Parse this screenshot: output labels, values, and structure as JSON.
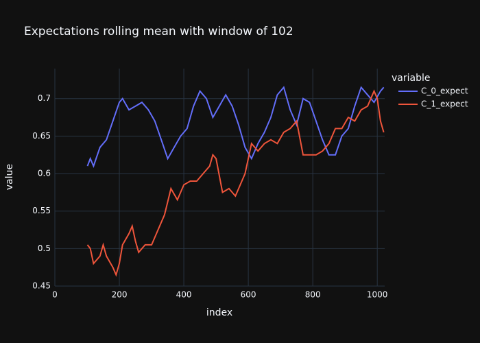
{
  "chart_data": {
    "type": "line",
    "title": "Expectations rolling mean with window of 102",
    "xlabel": "index",
    "ylabel": "value",
    "legend_title": "variable",
    "xlim": [
      0,
      1023
    ],
    "ylim": [
      0.45,
      0.74
    ],
    "xticks": [
      0,
      200,
      400,
      600,
      800,
      1000
    ],
    "yticks": [
      0.45,
      0.5,
      0.55,
      0.6,
      0.65,
      0.7
    ],
    "grid": true,
    "series": [
      {
        "name": "C_0_expect",
        "color": "#636efa",
        "x": [
          101,
          110,
          120,
          140,
          160,
          180,
          200,
          210,
          230,
          250,
          270,
          290,
          310,
          330,
          350,
          370,
          390,
          410,
          430,
          450,
          470,
          490,
          510,
          530,
          550,
          570,
          590,
          610,
          630,
          650,
          670,
          690,
          710,
          730,
          750,
          770,
          790,
          810,
          830,
          850,
          870,
          890,
          910,
          930,
          950,
          970,
          990,
          1010,
          1020
        ],
        "values": [
          0.61,
          0.62,
          0.61,
          0.635,
          0.645,
          0.67,
          0.695,
          0.7,
          0.685,
          0.69,
          0.695,
          0.685,
          0.67,
          0.645,
          0.62,
          0.635,
          0.65,
          0.66,
          0.69,
          0.71,
          0.7,
          0.675,
          0.69,
          0.705,
          0.69,
          0.665,
          0.635,
          0.62,
          0.64,
          0.655,
          0.675,
          0.705,
          0.715,
          0.685,
          0.665,
          0.7,
          0.695,
          0.67,
          0.645,
          0.625,
          0.625,
          0.65,
          0.66,
          0.69,
          0.715,
          0.705,
          0.695,
          0.71,
          0.715
        ]
      },
      {
        "name": "C_1_expect",
        "color": "#ef553b",
        "x": [
          101,
          110,
          120,
          140,
          150,
          160,
          180,
          190,
          200,
          210,
          230,
          240,
          250,
          260,
          280,
          300,
          320,
          340,
          360,
          380,
          400,
          420,
          440,
          460,
          480,
          490,
          500,
          520,
          540,
          560,
          580,
          590,
          610,
          630,
          650,
          670,
          690,
          710,
          730,
          750,
          770,
          790,
          810,
          830,
          850,
          870,
          890,
          910,
          930,
          950,
          970,
          990,
          1000,
          1010,
          1020
        ],
        "values": [
          0.505,
          0.5,
          0.48,
          0.49,
          0.505,
          0.49,
          0.475,
          0.465,
          0.48,
          0.505,
          0.52,
          0.53,
          0.51,
          0.495,
          0.505,
          0.505,
          0.525,
          0.545,
          0.58,
          0.565,
          0.585,
          0.59,
          0.59,
          0.6,
          0.61,
          0.625,
          0.62,
          0.575,
          0.58,
          0.57,
          0.59,
          0.6,
          0.64,
          0.63,
          0.64,
          0.645,
          0.64,
          0.655,
          0.66,
          0.67,
          0.625,
          0.625,
          0.625,
          0.63,
          0.64,
          0.66,
          0.66,
          0.675,
          0.67,
          0.685,
          0.69,
          0.71,
          0.7,
          0.67,
          0.655
        ]
      }
    ]
  }
}
